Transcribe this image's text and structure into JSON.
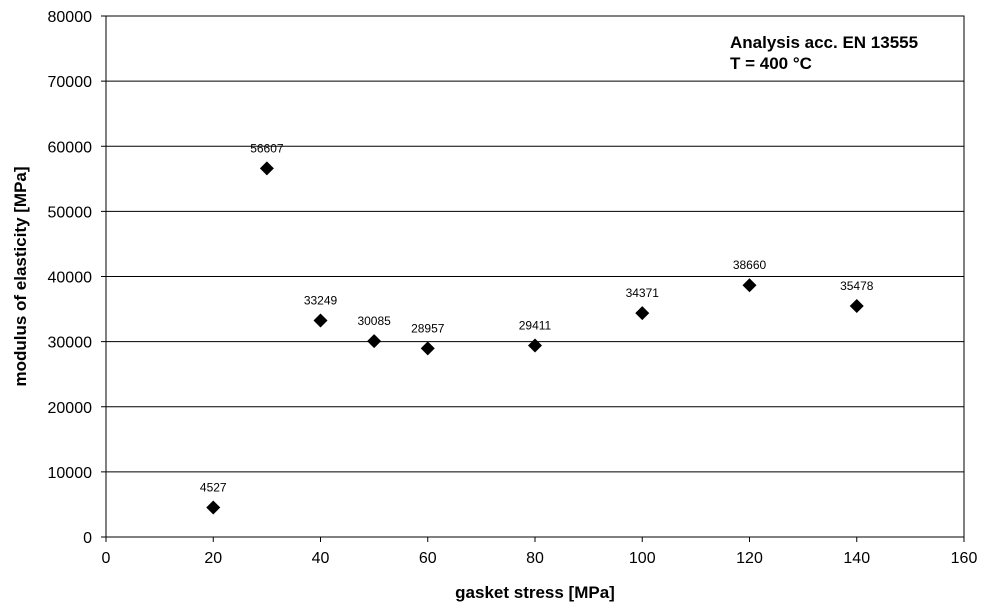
{
  "chart_data": {
    "type": "scatter",
    "xlabel": "gasket stress [MPa]",
    "ylabel": "modulus of elasticity [MPa]",
    "xlim": [
      0,
      160
    ],
    "ylim": [
      0,
      80000
    ],
    "xticks": [
      0,
      20,
      40,
      60,
      80,
      100,
      120,
      140,
      160
    ],
    "yticks": [
      0,
      10000,
      20000,
      30000,
      40000,
      50000,
      60000,
      70000,
      80000
    ],
    "grid": "horizontal",
    "legend": "none",
    "annotations": [
      "Analysis acc. EN 13555",
      "T = 400 °C"
    ],
    "points": [
      {
        "x": 20,
        "y": 4527,
        "label": "4527"
      },
      {
        "x": 30,
        "y": 56607,
        "label": "56607"
      },
      {
        "x": 40,
        "y": 33249,
        "label": "33249"
      },
      {
        "x": 50,
        "y": 30085,
        "label": "30085"
      },
      {
        "x": 60,
        "y": 28957,
        "label": "28957"
      },
      {
        "x": 80,
        "y": 29411,
        "label": "29411"
      },
      {
        "x": 100,
        "y": 34371,
        "label": "34371"
      },
      {
        "x": 120,
        "y": 38660,
        "label": "38660"
      },
      {
        "x": 140,
        "y": 35478,
        "label": "35478"
      }
    ],
    "marker": "diamond",
    "marker_color": "#000000"
  }
}
